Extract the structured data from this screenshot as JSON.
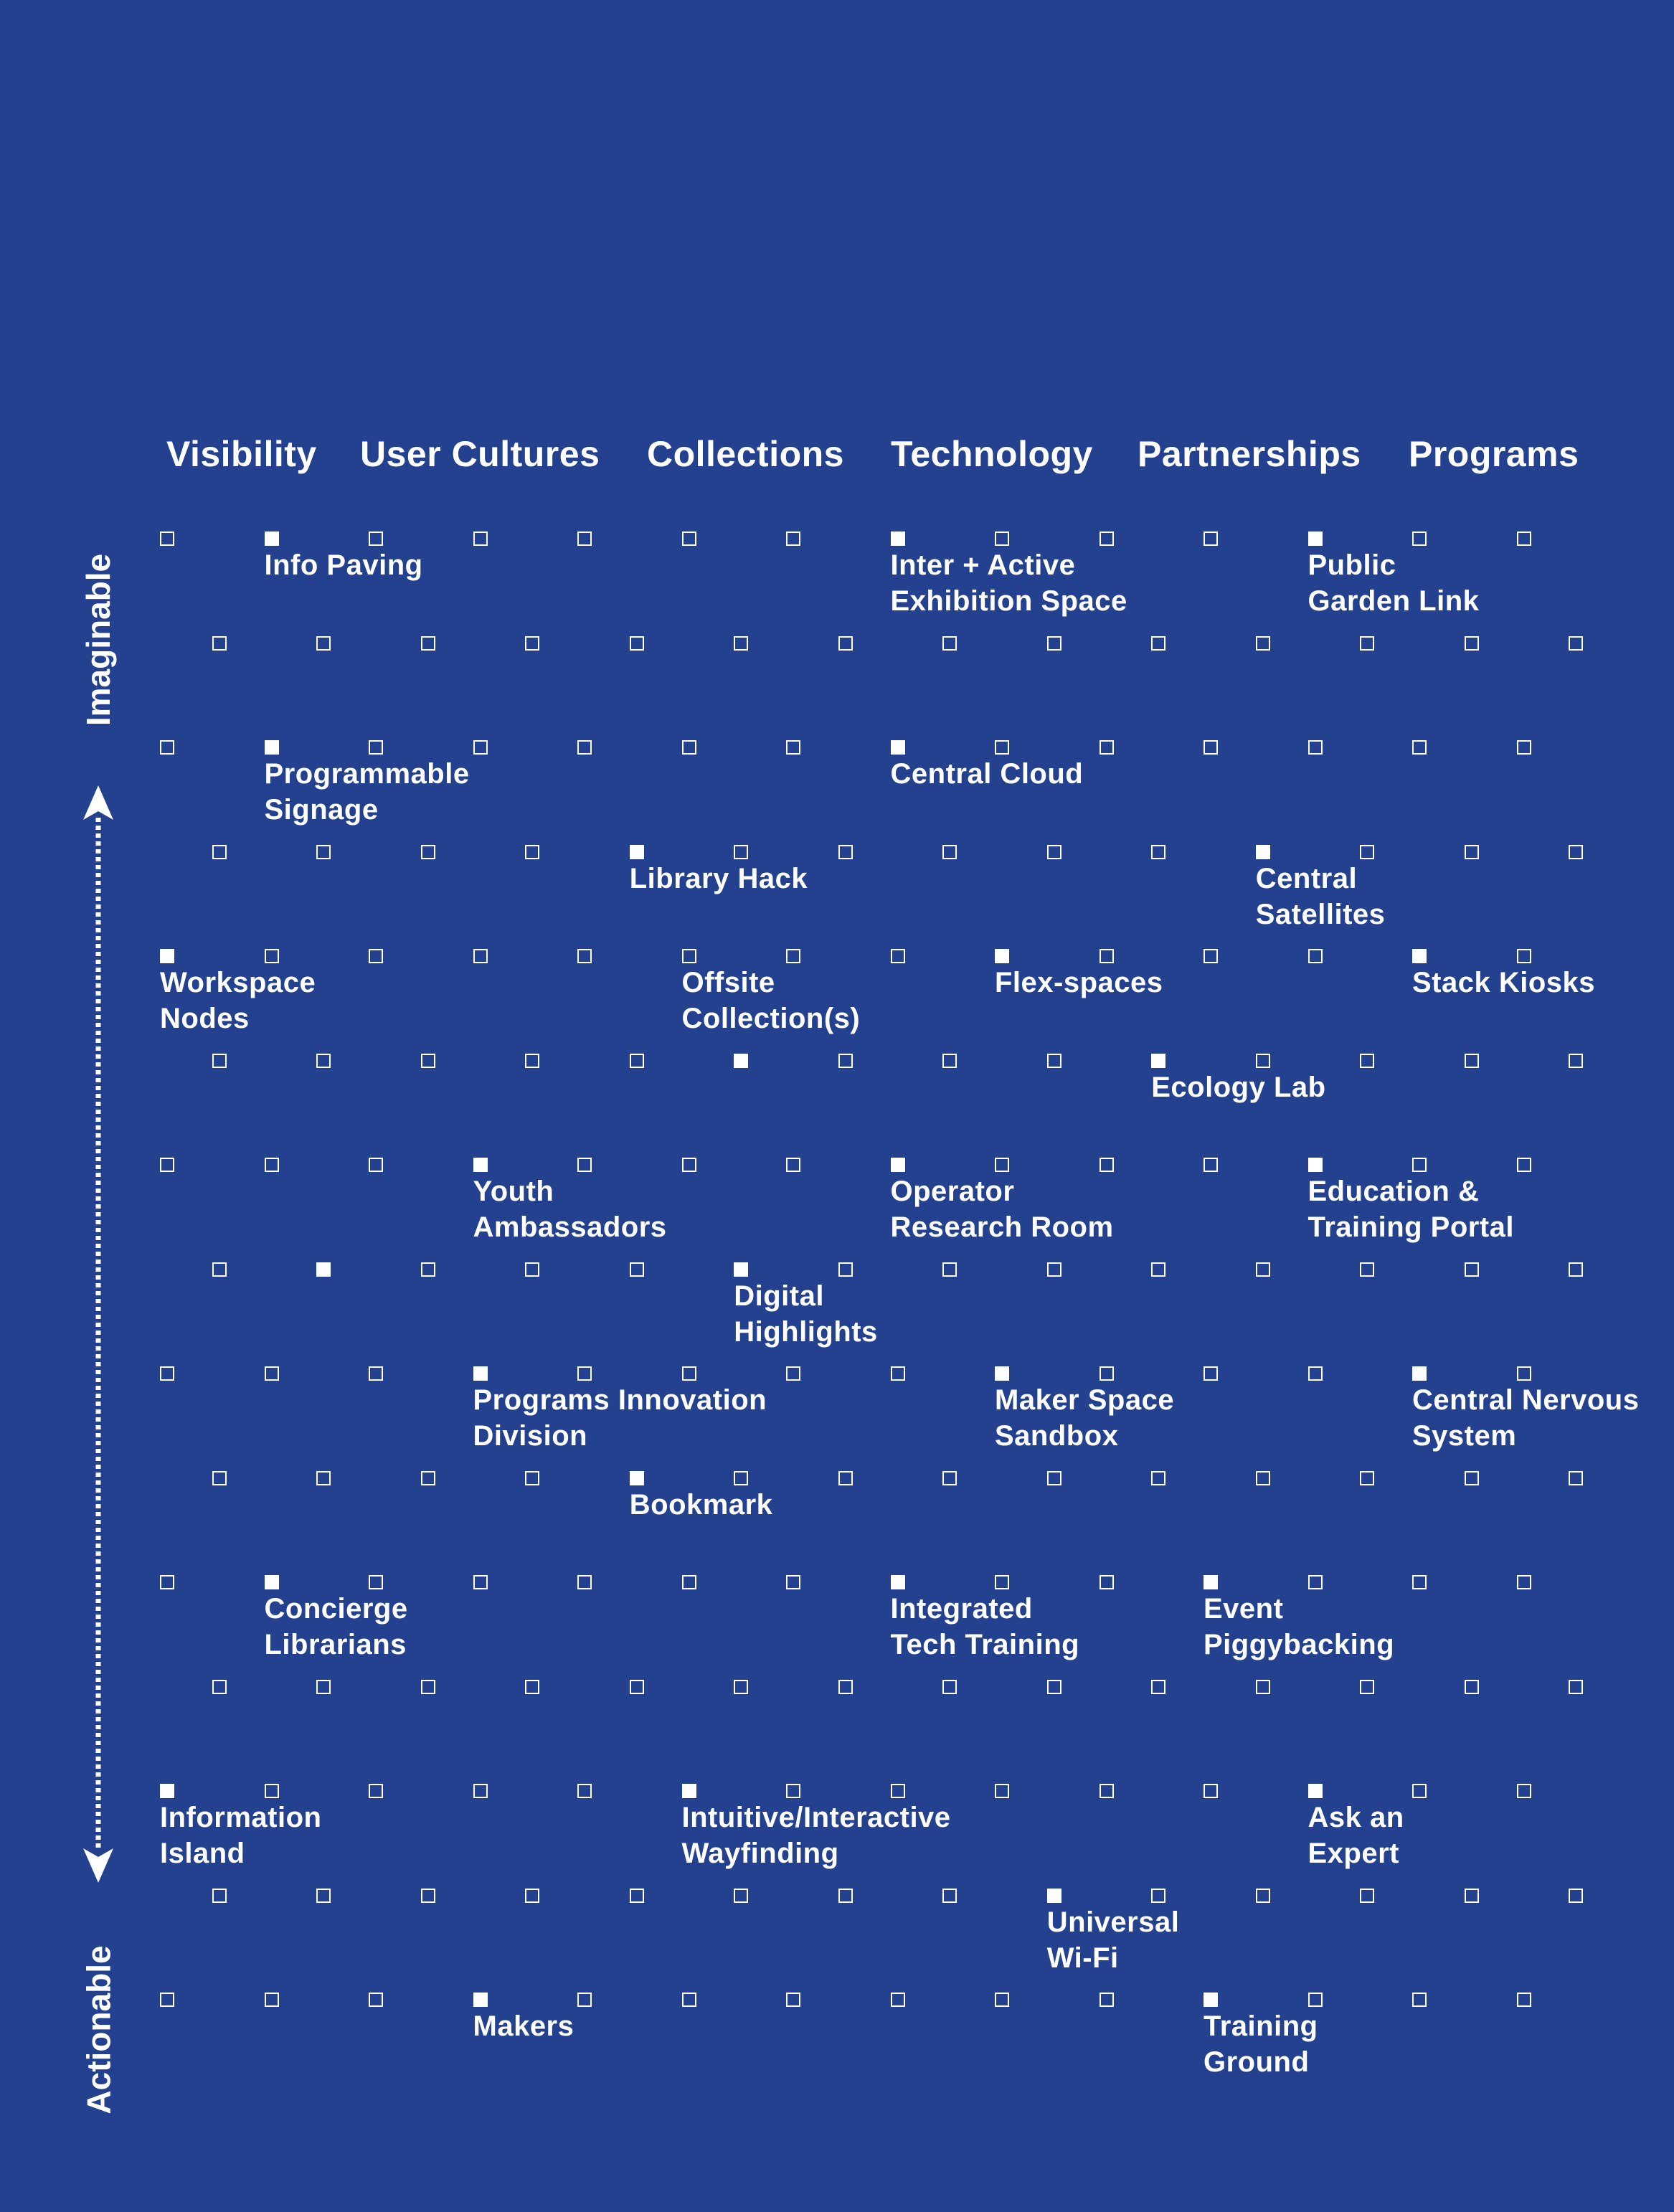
{
  "headers": [
    "Visibility",
    "User Cultures",
    "Collections",
    "Technology",
    "Partnerships",
    "Programs"
  ],
  "axis": {
    "top": "Imaginable",
    "bottom": "Actionable"
  },
  "grid": {
    "columns_per_row": 14,
    "rows": 15,
    "filled": [
      {
        "row": 0,
        "col": 1
      },
      {
        "row": 0,
        "col": 7
      },
      {
        "row": 0,
        "col": 11
      },
      {
        "row": 2,
        "col": 1
      },
      {
        "row": 2,
        "col": 7
      },
      {
        "row": 3,
        "col": 4
      },
      {
        "row": 3,
        "col": 10
      },
      {
        "row": 4,
        "col": 0
      },
      {
        "row": 4,
        "col": 8
      },
      {
        "row": 4,
        "col": 12
      },
      {
        "row": 5,
        "col": 5
      },
      {
        "row": 5,
        "col": 9
      },
      {
        "row": 6,
        "col": 3
      },
      {
        "row": 6,
        "col": 7
      },
      {
        "row": 6,
        "col": 11
      },
      {
        "row": 7,
        "col": 1
      },
      {
        "row": 7,
        "col": 5
      },
      {
        "row": 8,
        "col": 3
      },
      {
        "row": 8,
        "col": 8
      },
      {
        "row": 8,
        "col": 12
      },
      {
        "row": 9,
        "col": 4
      },
      {
        "row": 10,
        "col": 1
      },
      {
        "row": 10,
        "col": 7
      },
      {
        "row": 10,
        "col": 10
      },
      {
        "row": 12,
        "col": 0
      },
      {
        "row": 12,
        "col": 5
      },
      {
        "row": 12,
        "col": 11
      },
      {
        "row": 13,
        "col": 8
      },
      {
        "row": 14,
        "col": 3
      },
      {
        "row": 14,
        "col": 10
      }
    ]
  },
  "labels": [
    {
      "row": 0,
      "col": 1,
      "lines": [
        "Info Paving"
      ]
    },
    {
      "row": 0,
      "col": 7,
      "lines": [
        "Inter + Active",
        "Exhibition Space"
      ]
    },
    {
      "row": 0,
      "col": 11,
      "lines": [
        "Public",
        "Garden Link"
      ]
    },
    {
      "row": 2,
      "col": 1,
      "lines": [
        "Programmable",
        "Signage"
      ]
    },
    {
      "row": 2,
      "col": 7,
      "lines": [
        "Central Cloud"
      ]
    },
    {
      "row": 3,
      "col": 4,
      "lines": [
        "Library Hack"
      ]
    },
    {
      "row": 3,
      "col": 10,
      "lines": [
        "Central",
        "Satellites"
      ]
    },
    {
      "row": 4,
      "col": 0,
      "lines": [
        "Workspace",
        "Nodes"
      ]
    },
    {
      "row": 4,
      "col": 5,
      "lines": [
        "Offsite",
        "Collection(s)"
      ]
    },
    {
      "row": 4,
      "col": 8,
      "lines": [
        "Flex-spaces"
      ]
    },
    {
      "row": 4,
      "col": 12,
      "lines": [
        "Stack Kiosks"
      ]
    },
    {
      "row": 5,
      "col": 9,
      "lines": [
        "Ecology Lab"
      ]
    },
    {
      "row": 6,
      "col": 3,
      "lines": [
        "Youth",
        "Ambassadors"
      ]
    },
    {
      "row": 6,
      "col": 7,
      "lines": [
        "Operator",
        "Research Room"
      ]
    },
    {
      "row": 6,
      "col": 11,
      "lines": [
        "Education &",
        "Training Portal"
      ]
    },
    {
      "row": 7,
      "col": 5,
      "lines": [
        "Digital",
        "Highlights"
      ]
    },
    {
      "row": 8,
      "col": 3,
      "lines": [
        "Programs Innovation",
        "Division"
      ]
    },
    {
      "row": 8,
      "col": 8,
      "lines": [
        "Maker Space",
        "Sandbox"
      ]
    },
    {
      "row": 8,
      "col": 12,
      "lines": [
        "Central Nervous",
        "System"
      ]
    },
    {
      "row": 9,
      "col": 4,
      "lines": [
        "Bookmark"
      ]
    },
    {
      "row": 10,
      "col": 1,
      "lines": [
        "Concierge",
        "Librarians"
      ]
    },
    {
      "row": 10,
      "col": 7,
      "lines": [
        "Integrated",
        "Tech Training"
      ]
    },
    {
      "row": 10,
      "col": 10,
      "lines": [
        "Event",
        "Piggybacking"
      ]
    },
    {
      "row": 12,
      "col": 0,
      "lines": [
        "Information",
        "Island"
      ]
    },
    {
      "row": 12,
      "col": 5,
      "lines": [
        "Intuitive/Interactive",
        "Wayfinding"
      ]
    },
    {
      "row": 12,
      "col": 11,
      "lines": [
        "Ask an",
        "Expert"
      ]
    },
    {
      "row": 13,
      "col": 8,
      "lines": [
        "Universal",
        "Wi-Fi"
      ]
    },
    {
      "row": 14,
      "col": 3,
      "lines": [
        "Makers"
      ]
    },
    {
      "row": 14,
      "col": 10,
      "lines": [
        "Training",
        "Ground"
      ]
    }
  ]
}
